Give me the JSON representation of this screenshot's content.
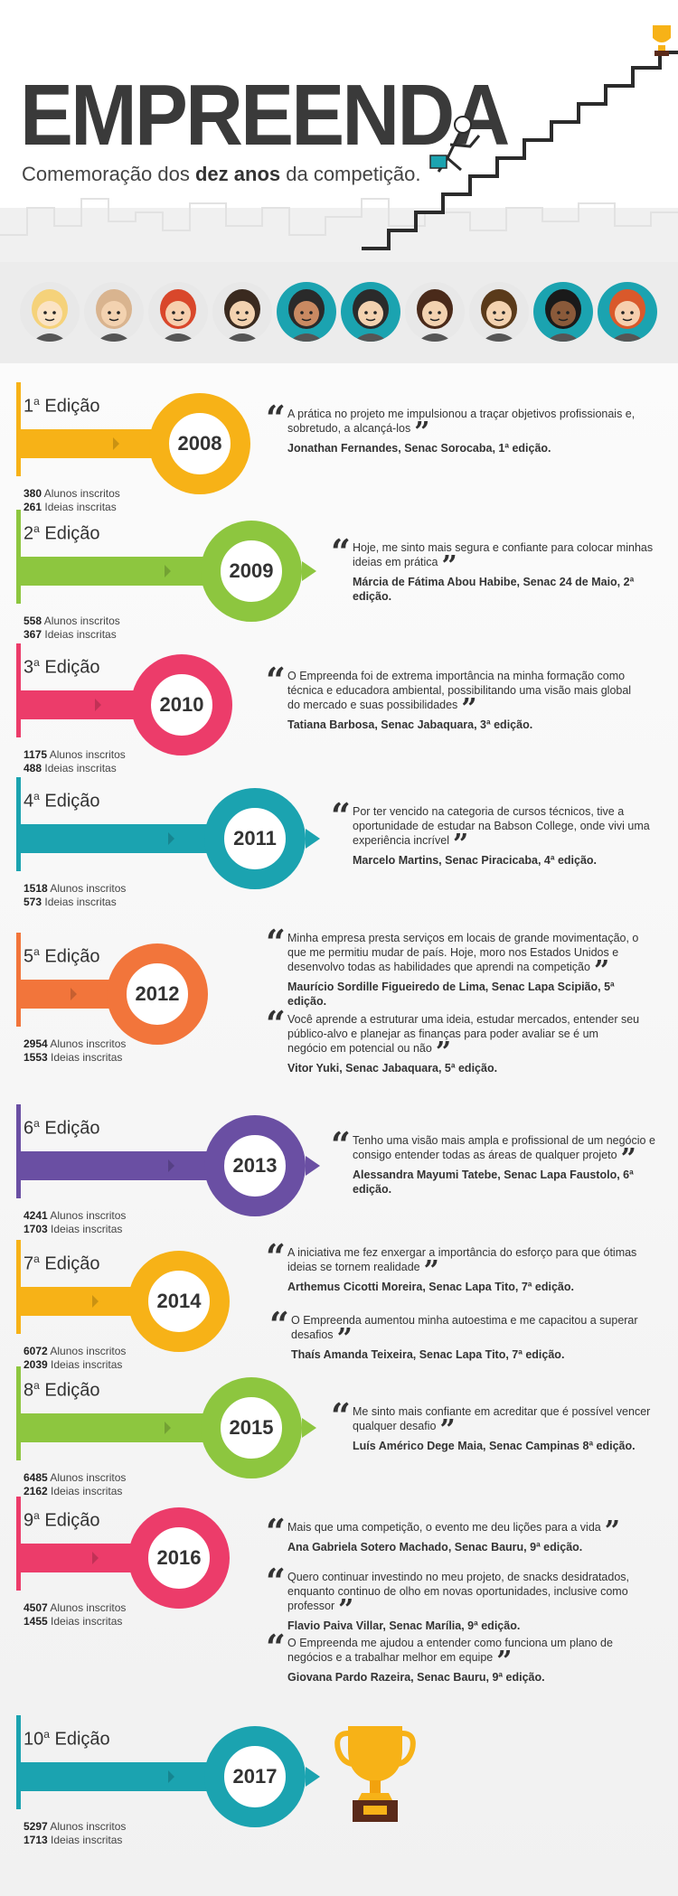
{
  "header": {
    "title": "EMPREENDA",
    "subtitle_prefix": "Comemoração dos ",
    "subtitle_bold": "dez anos",
    "subtitle_suffix": " da competição."
  },
  "colors": {
    "yellow": "#f7b217",
    "green": "#8dc63f",
    "pink": "#ec3c6a",
    "teal": "#1ba3b0",
    "orange": "#f2753b",
    "purple": "#6a4fa3",
    "dark": "#333333",
    "band": "#ececec"
  },
  "avatars": [
    "blonde-woman-avatar",
    "bald-man-avatar",
    "redhead-woman-avatar",
    "young-man-avatar",
    "dark-haired-woman-avatar",
    "bearded-man-avatar",
    "brunette-woman-avatar",
    "man-tie-avatar",
    "curly-woman-glasses-avatar",
    "redbeard-man-avatar"
  ],
  "editions": [
    {
      "num": "1",
      "sup": "a",
      "label": " Edição",
      "year": "2008",
      "color": "yellow",
      "students": "380",
      "students_label": " Alunos inscritos",
      "ideas": "261",
      "ideas_label": " Ideias inscritas",
      "quotes": [
        {
          "text": "A prática no projeto me impulsionou a traçar objetivos profissionais e, sobretudo, a alcançá-los",
          "author": "Jonathan Fernandes, Senac Sorocaba, 1ª edição."
        }
      ]
    },
    {
      "num": "2",
      "sup": "a",
      "label": " Edição",
      "year": "2009",
      "color": "green",
      "students": "558",
      "students_label": " Alunos inscritos",
      "ideas": "367",
      "ideas_label": " Ideias inscritas",
      "quotes": [
        {
          "text": "Hoje, me sinto mais segura e confiante para colocar minhas ideias em prática",
          "author": "Márcia de Fátima Abou Habibe, Senac 24 de Maio, 2ª edição."
        }
      ]
    },
    {
      "num": "3",
      "sup": "a",
      "label": " Edição",
      "year": "2010",
      "color": "pink",
      "students": "1175",
      "students_label": " Alunos inscritos",
      "ideas": "488",
      "ideas_label": " Ideias inscritas",
      "quotes": [
        {
          "text": "O Empreenda foi de extrema importância na minha formação como técnica e educadora ambiental, possibilitando uma visão mais global do mercado e suas possibilidades",
          "author": "Tatiana Barbosa, Senac Jabaquara, 3ª edição."
        }
      ]
    },
    {
      "num": "4",
      "sup": "a",
      "label": " Edição",
      "year": "2011",
      "color": "teal",
      "students": "1518",
      "students_label": " Alunos inscritos",
      "ideas": "573",
      "ideas_label": " Ideias inscritas",
      "quotes": [
        {
          "text": "Por ter vencido na categoria de cursos técnicos, tive a oportunidade de estudar na Babson College, onde vivi uma experiência incrível",
          "author": "Marcelo Martins, Senac Piracicaba, 4ª edição."
        }
      ]
    },
    {
      "num": "5",
      "sup": "a",
      "label": " Edição",
      "year": "2012",
      "color": "orange",
      "students": "2954",
      "students_label": " Alunos inscritos",
      "ideas": "1553",
      "ideas_label": " Ideias inscritas",
      "quotes": [
        {
          "text": "Minha empresa presta serviços em locais de grande movimentação, o que me permitiu mudar de país. Hoje, moro nos Estados Unidos e desenvolvo todas as habilidades que aprendi na competição",
          "author": "Maurício Sordille Figueiredo de Lima, Senac Lapa Scipião, 5ª edição."
        },
        {
          "text": "Você aprende a estruturar uma ideia, estudar mercados, entender seu público-alvo e planejar as finanças para poder avaliar se é um negócio em potencial ou não",
          "author": "Vitor Yuki, Senac Jabaquara, 5ª edição."
        }
      ]
    },
    {
      "num": "6",
      "sup": "a",
      "label": " Edição",
      "year": "2013",
      "color": "purple",
      "students": "4241",
      "students_label": " Alunos inscritos",
      "ideas": "1703",
      "ideas_label": " Ideias inscritas",
      "quotes": [
        {
          "text": "Tenho uma visão mais ampla e profissional de um negócio e consigo entender todas as áreas de qualquer projeto",
          "author": "Alessandra Mayumi Tatebe, Senac Lapa Faustolo, 6ª edição."
        }
      ]
    },
    {
      "num": "7",
      "sup": "a",
      "label": " Edição",
      "year": "2014",
      "color": "yellow",
      "students": "6072",
      "students_label": " Alunos inscritos",
      "ideas": "2039",
      "ideas_label": " Ideias inscritas",
      "quotes": [
        {
          "text": "A iniciativa me fez enxergar a importância do esforço para que ótimas ideias se tornem realidade",
          "author": "Arthemus Cicotti Moreira, Senac Lapa Tito, 7ª edição."
        },
        {
          "text": "O Empreenda aumentou minha autoestima e me capacitou a superar desafios",
          "author": "Thaís Amanda Teixeira, Senac Lapa Tito, 7ª edição."
        }
      ]
    },
    {
      "num": "8",
      "sup": "a",
      "label": " Edição",
      "year": "2015",
      "color": "green",
      "students": "6485",
      "students_label": " Alunos inscritos",
      "ideas": "2162",
      "ideas_label": " Ideias inscritas",
      "quotes": [
        {
          "text": "Me sinto mais confiante em acreditar que é possível vencer qualquer desafio",
          "author": "Luís Américo Dege Maia, Senac Campinas 8ª edição."
        }
      ]
    },
    {
      "num": "9",
      "sup": "a",
      "label": " Edição",
      "year": "2016",
      "color": "pink",
      "students": "4507",
      "students_label": " Alunos inscritos",
      "ideas": "1455",
      "ideas_label": " Ideias inscritas",
      "quotes": [
        {
          "text": "Mais que uma competição, o evento me deu lições para a vida",
          "author": "Ana Gabriela Sotero Machado, Senac Bauru, 9ª edição."
        },
        {
          "text": "Quero continuar investindo no meu projeto, de snacks desidratados, enquanto continuo de olho em novas oportunidades, inclusive como professor",
          "author": "Flavio Paiva Villar, Senac Marília, 9ª edição."
        },
        {
          "text": "O Empreenda me ajudou a entender como funciona um plano de negócios e a trabalhar melhor em equipe",
          "author": "Giovana Pardo Razeira, Senac Bauru, 9ª edição."
        }
      ]
    },
    {
      "num": "10",
      "sup": "a",
      "label": " Edição",
      "year": "2017",
      "color": "teal",
      "students": "5297",
      "students_label": " Alunos inscritos",
      "ideas": "1713",
      "ideas_label": " Ideias inscritas",
      "quotes": []
    }
  ]
}
